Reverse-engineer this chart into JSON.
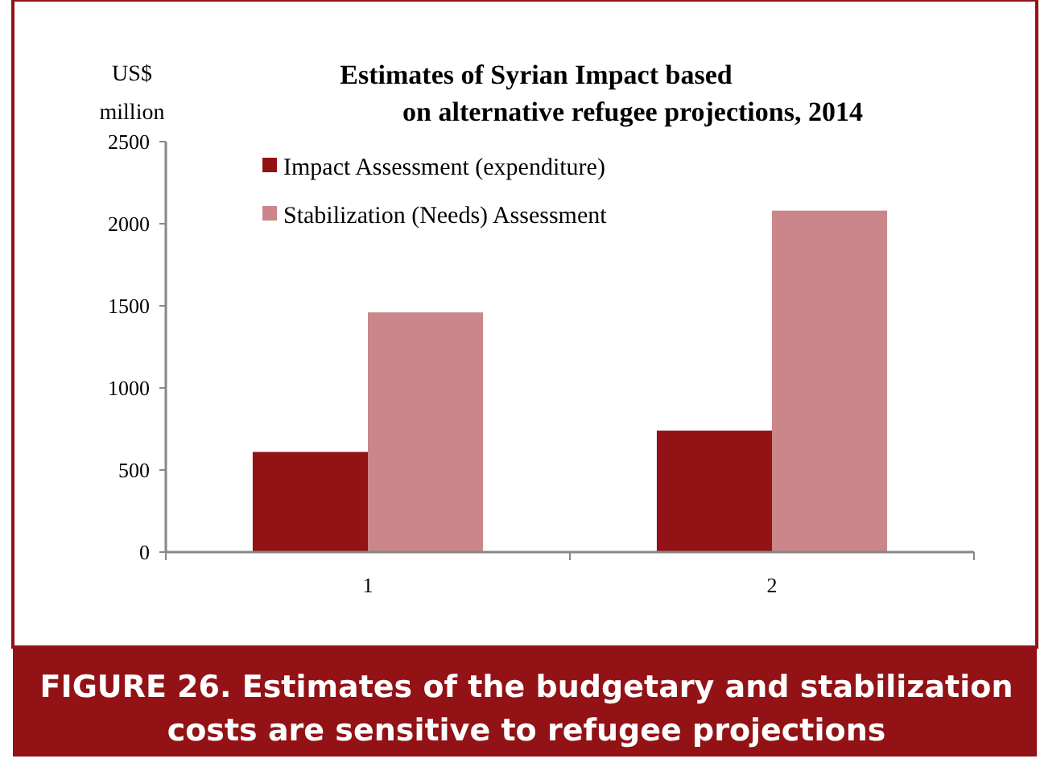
{
  "chart_data": {
    "type": "bar",
    "title": "Estimates of Syrian Impact based on alternative refugee projections, 2014",
    "ylabel": "US$ million",
    "categories": [
      "1",
      "2"
    ],
    "series": [
      {
        "name": "Impact Assessment (expenditure)",
        "color": "#921216",
        "values": [
          610,
          740
        ]
      },
      {
        "name": "Stabilization (Needs) Assessment",
        "color": "#ca8689",
        "values": [
          1460,
          2080
        ]
      }
    ],
    "ylim": [
      0,
      2500
    ],
    "yticks": [
      0,
      500,
      1000,
      1500,
      2000,
      2500
    ],
    "grid": false,
    "legend": "top left",
    "annotations": [
      "FIGURE 26. Estimates of the budgetary and stabilization costs are sensitive to refugee projections"
    ]
  }
}
